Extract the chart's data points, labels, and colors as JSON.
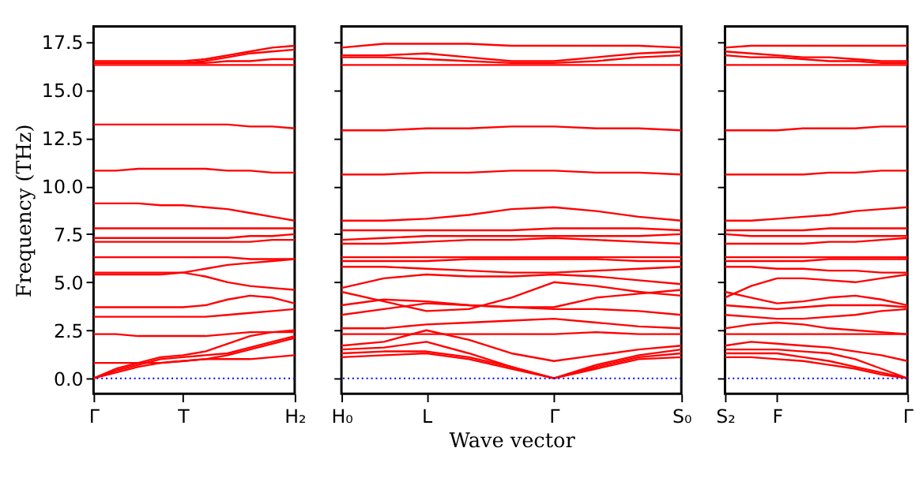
{
  "chart_data": [
    {
      "type": "line",
      "ylabel": "Frequency (THz)",
      "ylim": [
        -0.8,
        18.3
      ],
      "categories": [
        "Γ",
        null,
        null,
        null,
        "T",
        null,
        null,
        null,
        null,
        "H₂"
      ],
      "yticks": [
        {
          "value": 0,
          "label": "0.0"
        },
        {
          "value": 2.5,
          "label": "2.5"
        },
        {
          "value": 5,
          "label": "5.0"
        },
        {
          "value": 7.5,
          "label": "7.5"
        },
        {
          "value": 10,
          "label": "10.0"
        },
        {
          "value": 12.5,
          "label": "12.5"
        },
        {
          "value": 15,
          "label": "15.0"
        },
        {
          "value": 17.5,
          "label": "17.5"
        }
      ],
      "grid": false,
      "legend": false,
      "line_style": "solid",
      "marker": "none",
      "ref_lines": [
        {
          "axis": "y",
          "value": 0,
          "color": "#0000ff",
          "line_style": "dotted"
        }
      ],
      "series": [
        {
          "color": "#ff0000",
          "values": [
            0,
            0.3,
            0.6,
            0.8,
            0.9,
            1.0,
            1.0,
            1.0,
            1.1,
            1.2
          ]
        },
        {
          "color": "#ff0000",
          "values": [
            0,
            0.4,
            0.7,
            1.0,
            1.1,
            1.2,
            1.3,
            1.6,
            1.9,
            2.2
          ]
        },
        {
          "color": "#ff0000",
          "values": [
            0,
            0.5,
            0.8,
            1.1,
            1.2,
            1.4,
            1.8,
            2.2,
            2.4,
            2.5
          ]
        },
        {
          "color": "#ff0000",
          "values": [
            0.8,
            0.8,
            0.8,
            0.8,
            0.9,
            1.0,
            1.2,
            1.5,
            1.8,
            2.1
          ]
        },
        {
          "color": "#ff0000",
          "values": [
            2.3,
            2.3,
            2.2,
            2.2,
            2.2,
            2.2,
            2.3,
            2.4,
            2.4,
            2.4
          ]
        },
        {
          "color": "#ff0000",
          "values": [
            3.2,
            3.2,
            3.2,
            3.2,
            3.2,
            3.2,
            3.3,
            3.4,
            3.5,
            3.6
          ]
        },
        {
          "color": "#ff0000",
          "values": [
            3.7,
            3.7,
            3.7,
            3.7,
            3.7,
            3.8,
            4.1,
            4.3,
            4.2,
            3.9
          ]
        },
        {
          "color": "#ff0000",
          "values": [
            5.4,
            5.4,
            5.4,
            5.4,
            5.5,
            5.3,
            5.0,
            4.8,
            4.7,
            4.6
          ]
        },
        {
          "color": "#ff0000",
          "values": [
            5.5,
            5.5,
            5.5,
            5.5,
            5.5,
            5.7,
            5.9,
            6.0,
            6.1,
            6.2
          ]
        },
        {
          "color": "#ff0000",
          "values": [
            6.3,
            6.3,
            6.3,
            6.3,
            6.3,
            6.3,
            6.3,
            6.2,
            6.2,
            6.2
          ]
        },
        {
          "color": "#ff0000",
          "values": [
            7.1,
            7.1,
            7.1,
            7.1,
            7.1,
            7.1,
            7.1,
            7.1,
            7.2,
            7.2
          ]
        },
        {
          "color": "#ff0000",
          "values": [
            7.3,
            7.3,
            7.3,
            7.3,
            7.3,
            7.3,
            7.3,
            7.4,
            7.4,
            7.5
          ]
        },
        {
          "color": "#ff0000",
          "values": [
            7.8,
            7.8,
            7.8,
            7.8,
            7.8,
            7.8,
            7.8,
            7.8,
            7.8,
            7.8
          ]
        },
        {
          "color": "#ff0000",
          "values": [
            9.1,
            9.1,
            9.1,
            9.0,
            9.0,
            8.9,
            8.8,
            8.6,
            8.4,
            8.2
          ]
        },
        {
          "color": "#ff0000",
          "values": [
            10.8,
            10.8,
            10.9,
            10.9,
            10.9,
            10.9,
            10.8,
            10.8,
            10.7,
            10.7
          ]
        },
        {
          "color": "#ff0000",
          "values": [
            13.2,
            13.2,
            13.2,
            13.2,
            13.2,
            13.2,
            13.2,
            13.1,
            13.1,
            13.0
          ]
        },
        {
          "color": "#ff0000",
          "values": [
            16.3,
            16.3,
            16.3,
            16.3,
            16.3,
            16.3,
            16.3,
            16.3,
            16.3,
            16.3
          ]
        },
        {
          "color": "#ff0000",
          "values": [
            16.4,
            16.4,
            16.4,
            16.4,
            16.4,
            16.4,
            16.5,
            16.5,
            16.6,
            16.6
          ]
        },
        {
          "color": "#ff0000",
          "values": [
            16.4,
            16.4,
            16.4,
            16.4,
            16.4,
            16.5,
            16.7,
            16.9,
            17.0,
            17.1
          ]
        },
        {
          "color": "#ff0000",
          "values": [
            16.5,
            16.5,
            16.5,
            16.5,
            16.5,
            16.6,
            16.8,
            17.0,
            17.2,
            17.3
          ]
        }
      ]
    },
    {
      "type": "line",
      "xlabel": "Wave vector",
      "ylim": [
        -0.8,
        18.3
      ],
      "tick_labels": "x",
      "categories": [
        "H₀",
        null,
        "L",
        null,
        null,
        "Γ",
        null,
        null,
        "S₀"
      ],
      "yticks": [
        {
          "value": 0,
          "label": null
        },
        {
          "value": 2.5,
          "label": null
        },
        {
          "value": 5,
          "label": null
        },
        {
          "value": 7.5,
          "label": null
        },
        {
          "value": 10,
          "label": null
        },
        {
          "value": 12.5,
          "label": null
        },
        {
          "value": 15,
          "label": null
        },
        {
          "value": 17.5,
          "label": null
        }
      ],
      "grid": false,
      "legend": false,
      "line_style": "solid",
      "marker": "none",
      "ref_lines": [
        {
          "axis": "y",
          "value": 0,
          "color": "#0000ff",
          "line_style": "dotted"
        }
      ],
      "series": [
        {
          "color": "#ff0000",
          "values": [
            1.1,
            1.2,
            1.3,
            1.0,
            0.5,
            0.0,
            0.5,
            1.0,
            1.1
          ]
        },
        {
          "color": "#ff0000",
          "values": [
            1.3,
            1.4,
            1.4,
            1.1,
            0.6,
            0.0,
            0.6,
            1.1,
            1.3
          ]
        },
        {
          "color": "#ff0000",
          "values": [
            1.5,
            1.6,
            1.9,
            1.3,
            0.6,
            0.0,
            0.7,
            1.2,
            1.5
          ]
        },
        {
          "color": "#ff0000",
          "values": [
            1.7,
            1.9,
            2.5,
            2.0,
            1.3,
            0.9,
            1.2,
            1.5,
            1.7
          ]
        },
        {
          "color": "#ff0000",
          "values": [
            2.3,
            2.3,
            2.3,
            2.3,
            2.3,
            2.3,
            2.4,
            2.3,
            2.3
          ]
        },
        {
          "color": "#ff0000",
          "values": [
            2.6,
            2.6,
            2.8,
            2.9,
            3.0,
            3.1,
            2.9,
            2.7,
            2.6
          ]
        },
        {
          "color": "#ff0000",
          "values": [
            3.3,
            3.6,
            3.9,
            3.8,
            3.7,
            3.6,
            3.6,
            3.5,
            3.3
          ]
        },
        {
          "color": "#ff0000",
          "values": [
            3.8,
            4.1,
            4.0,
            3.8,
            3.7,
            3.7,
            4.2,
            4.4,
            4.6
          ]
        },
        {
          "color": "#ff0000",
          "values": [
            4.5,
            4.0,
            3.5,
            3.6,
            4.2,
            5.0,
            4.8,
            4.5,
            4.3
          ]
        },
        {
          "color": "#ff0000",
          "values": [
            4.7,
            5.2,
            5.4,
            5.3,
            5.3,
            5.4,
            5.3,
            5.1,
            4.9
          ]
        },
        {
          "color": "#ff0000",
          "values": [
            5.8,
            5.8,
            5.7,
            5.6,
            5.5,
            5.5,
            5.6,
            5.7,
            5.8
          ]
        },
        {
          "color": "#ff0000",
          "values": [
            6.1,
            6.1,
            6.1,
            6.2,
            6.2,
            6.2,
            6.2,
            6.1,
            6.1
          ]
        },
        {
          "color": "#ff0000",
          "values": [
            6.3,
            6.3,
            6.3,
            6.3,
            6.3,
            6.3,
            6.3,
            6.3,
            6.3
          ]
        },
        {
          "color": "#ff0000",
          "values": [
            7.0,
            7.0,
            7.1,
            7.2,
            7.2,
            7.3,
            7.2,
            7.1,
            7.0
          ]
        },
        {
          "color": "#ff0000",
          "values": [
            7.2,
            7.3,
            7.4,
            7.4,
            7.4,
            7.4,
            7.4,
            7.4,
            7.5
          ]
        },
        {
          "color": "#ff0000",
          "values": [
            7.7,
            7.7,
            7.7,
            7.7,
            7.7,
            7.8,
            7.8,
            7.8,
            7.7
          ]
        },
        {
          "color": "#ff0000",
          "values": [
            8.2,
            8.2,
            8.3,
            8.5,
            8.8,
            8.9,
            8.7,
            8.4,
            8.2
          ]
        },
        {
          "color": "#ff0000",
          "values": [
            10.6,
            10.6,
            10.7,
            10.7,
            10.8,
            10.8,
            10.7,
            10.7,
            10.6
          ]
        },
        {
          "color": "#ff0000",
          "values": [
            12.9,
            12.9,
            13.0,
            13.0,
            13.1,
            13.1,
            13.0,
            13.0,
            12.9
          ]
        },
        {
          "color": "#ff0000",
          "values": [
            16.3,
            16.3,
            16.3,
            16.3,
            16.3,
            16.3,
            16.3,
            16.3,
            16.3
          ]
        },
        {
          "color": "#ff0000",
          "values": [
            16.7,
            16.7,
            16.6,
            16.5,
            16.4,
            16.4,
            16.5,
            16.7,
            16.8
          ]
        },
        {
          "color": "#ff0000",
          "values": [
            16.8,
            16.8,
            16.9,
            16.7,
            16.5,
            16.5,
            16.7,
            16.9,
            17.0
          ]
        },
        {
          "color": "#ff0000",
          "values": [
            17.2,
            17.4,
            17.4,
            17.4,
            17.3,
            17.3,
            17.3,
            17.3,
            17.2
          ]
        }
      ]
    },
    {
      "type": "line",
      "ylim": [
        -0.8,
        18.3
      ],
      "tick_labels": "x",
      "categories": [
        "S₂",
        null,
        "F",
        null,
        null,
        null,
        null,
        "Γ"
      ],
      "yticks": [
        {
          "value": 0,
          "label": null
        },
        {
          "value": 2.5,
          "label": null
        },
        {
          "value": 5,
          "label": null
        },
        {
          "value": 7.5,
          "label": null
        },
        {
          "value": 10,
          "label": null
        },
        {
          "value": 12.5,
          "label": null
        },
        {
          "value": 15,
          "label": null
        },
        {
          "value": 17.5,
          "label": null
        }
      ],
      "grid": false,
      "legend": false,
      "line_style": "solid",
      "marker": "none",
      "ref_lines": [
        {
          "axis": "y",
          "value": 0,
          "color": "#0000ff",
          "line_style": "dotted"
        }
      ],
      "series": [
        {
          "color": "#ff0000",
          "values": [
            1.1,
            1.1,
            1.0,
            0.9,
            0.7,
            0.5,
            0.2,
            0.0
          ]
        },
        {
          "color": "#ff0000",
          "values": [
            1.3,
            1.3,
            1.3,
            1.1,
            0.9,
            0.6,
            0.3,
            0.0
          ]
        },
        {
          "color": "#ff0000",
          "values": [
            1.5,
            1.5,
            1.5,
            1.4,
            1.3,
            1.0,
            0.5,
            0.0
          ]
        },
        {
          "color": "#ff0000",
          "values": [
            1.7,
            1.9,
            1.8,
            1.7,
            1.6,
            1.4,
            1.2,
            0.9
          ]
        },
        {
          "color": "#ff0000",
          "values": [
            2.3,
            2.3,
            2.3,
            2.3,
            2.3,
            2.3,
            2.3,
            2.3
          ]
        },
        {
          "color": "#ff0000",
          "values": [
            2.6,
            2.8,
            2.9,
            2.8,
            2.6,
            2.5,
            2.4,
            2.3
          ]
        },
        {
          "color": "#ff0000",
          "values": [
            3.3,
            3.2,
            3.1,
            3.1,
            3.2,
            3.3,
            3.5,
            3.6
          ]
        },
        {
          "color": "#ff0000",
          "values": [
            3.8,
            3.7,
            3.6,
            3.7,
            3.8,
            3.8,
            3.8,
            3.7
          ]
        },
        {
          "color": "#ff0000",
          "values": [
            4.5,
            4.2,
            3.9,
            4.0,
            4.2,
            4.3,
            4.1,
            3.8
          ]
        },
        {
          "color": "#ff0000",
          "values": [
            4.2,
            4.8,
            5.2,
            5.2,
            5.1,
            5.0,
            5.2,
            5.4
          ]
        },
        {
          "color": "#ff0000",
          "values": [
            5.8,
            5.8,
            5.7,
            5.7,
            5.6,
            5.6,
            5.5,
            5.5
          ]
        },
        {
          "color": "#ff0000",
          "values": [
            6.1,
            6.1,
            6.1,
            6.1,
            6.2,
            6.2,
            6.2,
            6.2
          ]
        },
        {
          "color": "#ff0000",
          "values": [
            6.3,
            6.3,
            6.3,
            6.3,
            6.3,
            6.3,
            6.3,
            6.3
          ]
        },
        {
          "color": "#ff0000",
          "values": [
            7.0,
            7.0,
            7.0,
            7.0,
            7.1,
            7.1,
            7.2,
            7.3
          ]
        },
        {
          "color": "#ff0000",
          "values": [
            7.5,
            7.4,
            7.4,
            7.4,
            7.4,
            7.4,
            7.4,
            7.4
          ]
        },
        {
          "color": "#ff0000",
          "values": [
            7.7,
            7.7,
            7.7,
            7.7,
            7.8,
            7.8,
            7.8,
            7.8
          ]
        },
        {
          "color": "#ff0000",
          "values": [
            8.2,
            8.2,
            8.3,
            8.4,
            8.5,
            8.7,
            8.8,
            8.9
          ]
        },
        {
          "color": "#ff0000",
          "values": [
            10.6,
            10.6,
            10.6,
            10.6,
            10.7,
            10.7,
            10.8,
            10.8
          ]
        },
        {
          "color": "#ff0000",
          "values": [
            12.9,
            12.9,
            12.9,
            13.0,
            13.0,
            13.0,
            13.1,
            13.1
          ]
        },
        {
          "color": "#ff0000",
          "values": [
            16.3,
            16.3,
            16.3,
            16.3,
            16.3,
            16.3,
            16.3,
            16.3
          ]
        },
        {
          "color": "#ff0000",
          "values": [
            16.8,
            16.7,
            16.7,
            16.6,
            16.5,
            16.5,
            16.4,
            16.4
          ]
        },
        {
          "color": "#ff0000",
          "values": [
            17.0,
            16.9,
            16.8,
            16.7,
            16.7,
            16.6,
            16.5,
            16.5
          ]
        },
        {
          "color": "#ff0000",
          "values": [
            17.2,
            17.3,
            17.3,
            17.3,
            17.3,
            17.3,
            17.3,
            17.3
          ]
        }
      ]
    }
  ]
}
